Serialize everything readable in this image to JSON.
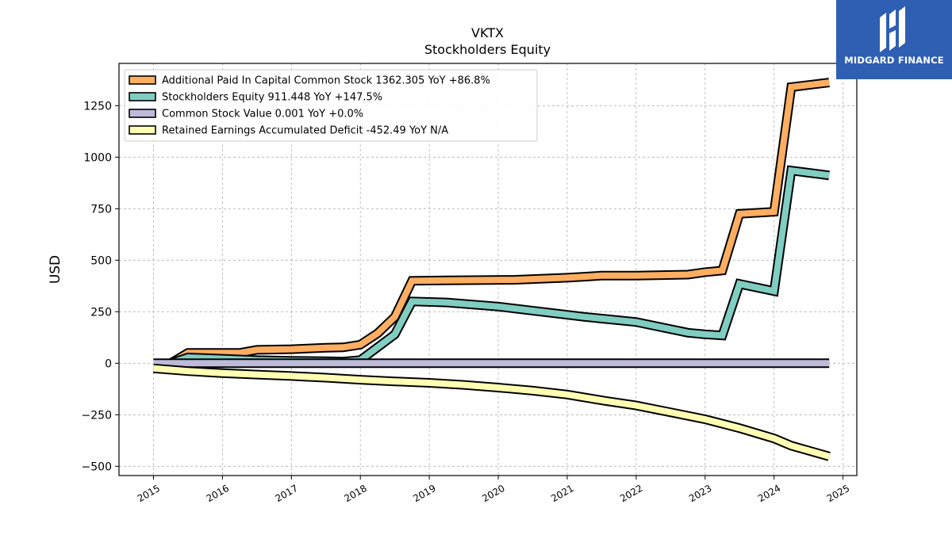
{
  "chart_data": {
    "type": "line",
    "title": "VKTX",
    "subtitle": "Stockholders  Equity",
    "ylabel": "USD",
    "xlabel": "",
    "xlim": [
      2014.5,
      2025.2
    ],
    "ylim": [
      -545,
      1455
    ],
    "x_ticks": [
      2015,
      2016,
      2017,
      2018,
      2019,
      2020,
      2021,
      2022,
      2023,
      2024,
      2025
    ],
    "y_ticks": [
      -500,
      -250,
      0,
      250,
      500,
      750,
      1000,
      1250
    ],
    "y_tick_labels": [
      "−500",
      "−250",
      "0",
      "250",
      "500",
      "750",
      "1000",
      "1250"
    ],
    "grid": true,
    "legend_position": "top-left",
    "series": [
      {
        "name": "Additional Paid In Capital Common Stock  1362.305 YoY +86.8%",
        "color": "#fdae61",
        "x": [
          2015.25,
          2015.5,
          2016.25,
          2016.5,
          2017.0,
          2017.5,
          2017.75,
          2018.0,
          2018.25,
          2018.5,
          2018.75,
          2019.25,
          2020.25,
          2021.0,
          2021.25,
          2021.5,
          2022.0,
          2022.75,
          2023.0,
          2023.25,
          2023.5,
          2024.0,
          2024.25,
          2024.8
        ],
        "y": [
          0,
          50,
          50,
          65,
          68,
          75,
          77,
          90,
          145,
          225,
          400,
          402,
          405,
          415,
          420,
          425,
          425,
          430,
          442,
          450,
          725,
          735,
          1340,
          1362.305
        ]
      },
      {
        "name": "Stockholders Equity  911.448 YoY +147.5%",
        "color": "#80cdc1",
        "x": [
          2015.25,
          2015.5,
          2016.0,
          2016.5,
          2017.0,
          2017.5,
          2017.75,
          2018.0,
          2018.5,
          2018.75,
          2019.25,
          2020.0,
          2021.0,
          2021.25,
          2022.0,
          2022.75,
          2023.0,
          2023.25,
          2023.5,
          2024.0,
          2024.25,
          2024.8
        ],
        "y": [
          0,
          28,
          22,
          15,
          12,
          10,
          8,
          15,
          140,
          300,
          295,
          275,
          235,
          225,
          200,
          148,
          140,
          135,
          385,
          350,
          935,
          911.448
        ]
      },
      {
        "name": "Common Stock Value  0.001 YoY +0.0%",
        "color": "#bebada",
        "x": [
          2015.0,
          2024.8
        ],
        "y": [
          0.001,
          0.001
        ]
      },
      {
        "name": "Retained Earnings Accumulated Deficit  -452.49 YoY N/A",
        "color": "#ffffb3",
        "x": [
          2015.0,
          2015.5,
          2016.0,
          2016.5,
          2017.0,
          2017.5,
          2018.0,
          2018.5,
          2019.0,
          2019.5,
          2020.0,
          2020.5,
          2021.0,
          2021.5,
          2022.0,
          2022.5,
          2023.0,
          2023.5,
          2024.0,
          2024.25,
          2024.8
        ],
        "y": [
          -25,
          -38,
          -48,
          -55,
          -62,
          -70,
          -80,
          -88,
          -95,
          -105,
          -118,
          -133,
          -152,
          -180,
          -205,
          -238,
          -272,
          -315,
          -365,
          -400,
          -452.49
        ]
      }
    ]
  },
  "logo": {
    "text": "MIDGARD FINANCE"
  }
}
